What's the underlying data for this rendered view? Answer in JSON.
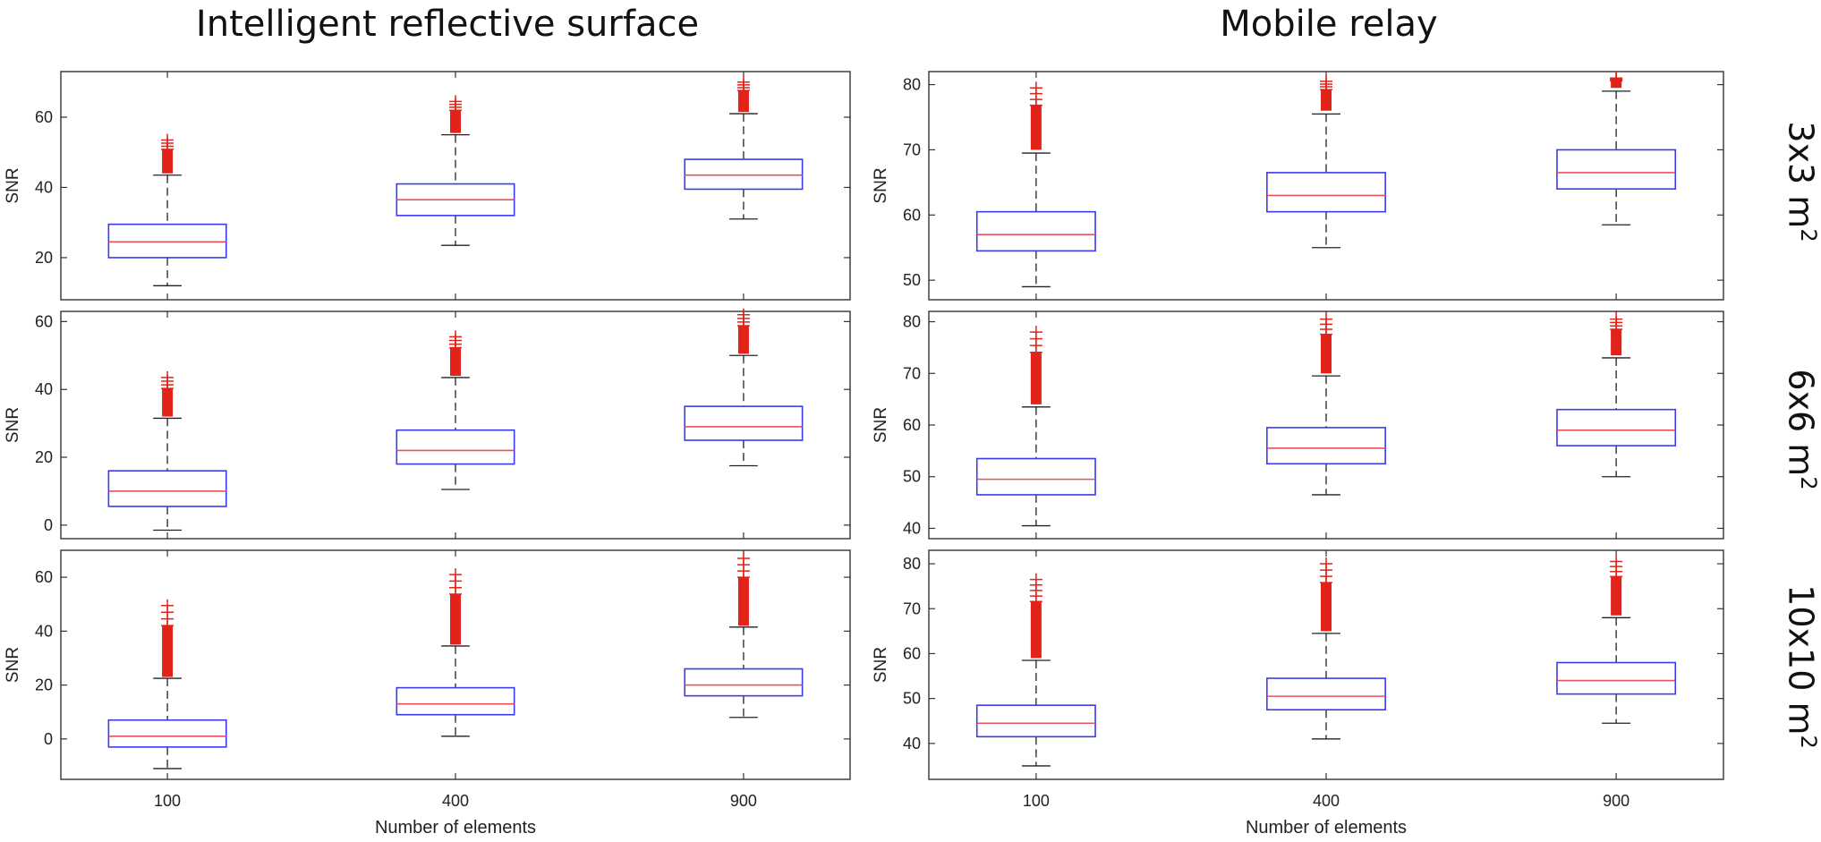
{
  "figure": {
    "column_titles": [
      "Intelligent reflective surface",
      "Mobile relay"
    ],
    "row_labels": [
      {
        "base": "3x3 m",
        "sup": "2"
      },
      {
        "base": "6x6 m",
        "sup": "2"
      },
      {
        "base": "10x10 m",
        "sup": "2"
      }
    ],
    "ylabel": "SNR",
    "xlabel": "Number of elements",
    "categories": [
      "100",
      "400",
      "900"
    ],
    "colors": {
      "box": "#3a3af0",
      "median": "#e8505a",
      "whisker": "#222222",
      "outlier": "#e2231a",
      "frame": "#333333"
    }
  },
  "chart_data": [
    {
      "type": "box",
      "title": "Intelligent reflective surface",
      "row": "3x3 m2",
      "ylabel": "SNR",
      "xlabel": "",
      "ylim": [
        8,
        73
      ],
      "yticks": [
        20,
        40,
        60
      ],
      "categories": [
        "100",
        "400",
        "900"
      ],
      "boxes": [
        {
          "whisker_low": 12,
          "q1": 20,
          "median": 24.5,
          "q3": 29.5,
          "whisker_high": 43.5,
          "outlier_min": 44,
          "outlier_max": 53.5
        },
        {
          "whisker_low": 23.5,
          "q1": 32,
          "median": 36.5,
          "q3": 41,
          "whisker_high": 55,
          "outlier_min": 55.5,
          "outlier_max": 64.5
        },
        {
          "whisker_low": 31,
          "q1": 39.5,
          "median": 43.5,
          "q3": 48,
          "whisker_high": 61,
          "outlier_min": 61.5,
          "outlier_max": 70
        }
      ]
    },
    {
      "type": "box",
      "title": "Mobile relay",
      "row": "3x3 m2",
      "ylabel": "SNR",
      "xlabel": "",
      "ylim": [
        47,
        82
      ],
      "yticks": [
        50,
        60,
        70,
        80
      ],
      "categories": [
        "100",
        "400",
        "900"
      ],
      "boxes": [
        {
          "whisker_low": 49,
          "q1": 54.5,
          "median": 57,
          "q3": 60.5,
          "whisker_high": 69.5,
          "outlier_min": 70,
          "outlier_max": 79.5
        },
        {
          "whisker_low": 55,
          "q1": 60.5,
          "median": 63,
          "q3": 66.5,
          "whisker_high": 75.5,
          "outlier_min": 76,
          "outlier_max": 80.5
        },
        {
          "whisker_low": 58.5,
          "q1": 64,
          "median": 66.5,
          "q3": 70,
          "whisker_high": 79,
          "outlier_min": 79.5,
          "outlier_max": 81
        }
      ]
    },
    {
      "type": "box",
      "title": "Intelligent reflective surface",
      "row": "6x6 m2",
      "ylabel": "SNR",
      "xlabel": "",
      "ylim": [
        -4,
        63
      ],
      "yticks": [
        0,
        20,
        40,
        60
      ],
      "categories": [
        "100",
        "400",
        "900"
      ],
      "boxes": [
        {
          "whisker_low": -1.5,
          "q1": 5.5,
          "median": 10,
          "q3": 16,
          "whisker_high": 31.5,
          "outlier_min": 32,
          "outlier_max": 43.5
        },
        {
          "whisker_low": 10.5,
          "q1": 18,
          "median": 22,
          "q3": 28,
          "whisker_high": 43.5,
          "outlier_min": 44,
          "outlier_max": 55.5
        },
        {
          "whisker_low": 17.5,
          "q1": 25,
          "median": 29,
          "q3": 35,
          "whisker_high": 50,
          "outlier_min": 50.5,
          "outlier_max": 62
        }
      ]
    },
    {
      "type": "box",
      "title": "Mobile relay",
      "row": "6x6 m2",
      "ylabel": "SNR",
      "xlabel": "",
      "ylim": [
        38,
        82
      ],
      "yticks": [
        40,
        50,
        60,
        70,
        80
      ],
      "categories": [
        "100",
        "400",
        "900"
      ],
      "boxes": [
        {
          "whisker_low": 40.5,
          "q1": 46.5,
          "median": 49.5,
          "q3": 53.5,
          "whisker_high": 63.5,
          "outlier_min": 64,
          "outlier_max": 78
        },
        {
          "whisker_low": 46.5,
          "q1": 52.5,
          "median": 55.5,
          "q3": 59.5,
          "whisker_high": 69.5,
          "outlier_min": 70,
          "outlier_max": 80.5
        },
        {
          "whisker_low": 50,
          "q1": 56,
          "median": 59,
          "q3": 63,
          "whisker_high": 73,
          "outlier_min": 73.5,
          "outlier_max": 80.5
        }
      ]
    },
    {
      "type": "box",
      "title": "Intelligent reflective surface",
      "row": "10x10 m2",
      "ylabel": "SNR",
      "xlabel": "Number of elements",
      "ylim": [
        -15,
        70
      ],
      "yticks": [
        0,
        20,
        40,
        60
      ],
      "categories": [
        "100",
        "400",
        "900"
      ],
      "boxes": [
        {
          "whisker_low": -11,
          "q1": -3,
          "median": 1,
          "q3": 7,
          "whisker_high": 22.5,
          "outlier_min": 23,
          "outlier_max": 49.5
        },
        {
          "whisker_low": 1,
          "q1": 9,
          "median": 13,
          "q3": 19,
          "whisker_high": 34.5,
          "outlier_min": 35,
          "outlier_max": 61
        },
        {
          "whisker_low": 8,
          "q1": 16,
          "median": 20,
          "q3": 26,
          "whisker_high": 41.5,
          "outlier_min": 42,
          "outlier_max": 67
        }
      ]
    },
    {
      "type": "box",
      "title": "Mobile relay",
      "row": "10x10 m2",
      "ylabel": "SNR",
      "xlabel": "Number of elements",
      "ylim": [
        32,
        83
      ],
      "yticks": [
        40,
        50,
        60,
        70,
        80
      ],
      "categories": [
        "100",
        "400",
        "900"
      ],
      "boxes": [
        {
          "whisker_low": 35,
          "q1": 41.5,
          "median": 44.5,
          "q3": 48.5,
          "whisker_high": 58.5,
          "outlier_min": 59,
          "outlier_max": 76.5
        },
        {
          "whisker_low": 41,
          "q1": 47.5,
          "median": 50.5,
          "q3": 54.5,
          "whisker_high": 64.5,
          "outlier_min": 65,
          "outlier_max": 80
        },
        {
          "whisker_low": 44.5,
          "q1": 51,
          "median": 54,
          "q3": 58,
          "whisker_high": 68,
          "outlier_min": 68.5,
          "outlier_max": 80.5
        }
      ]
    }
  ]
}
